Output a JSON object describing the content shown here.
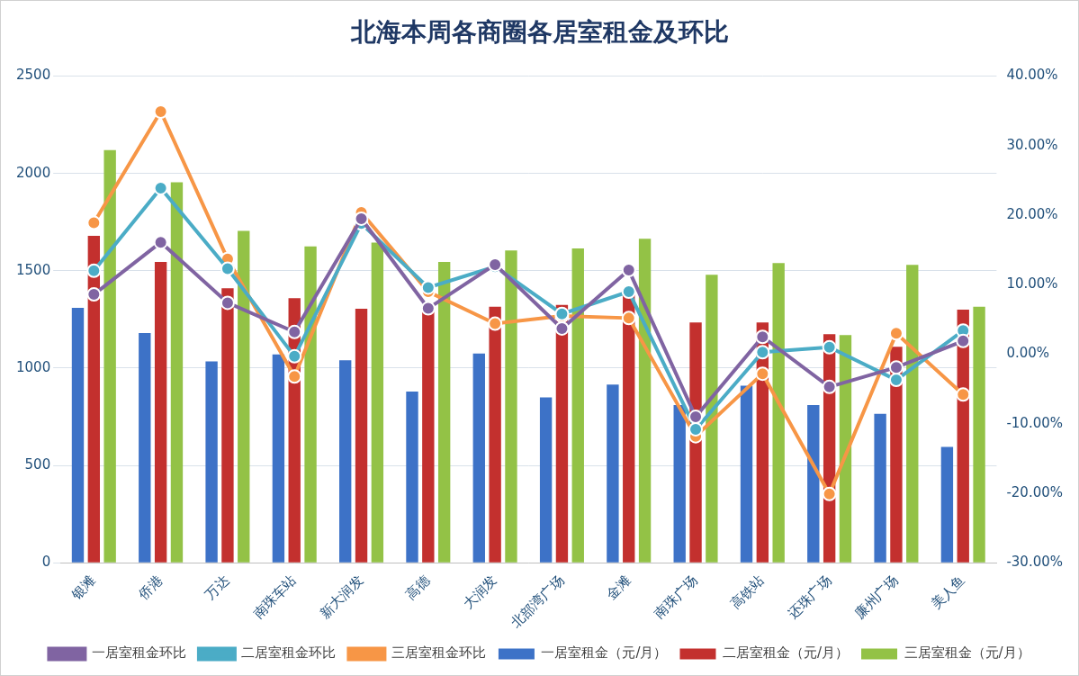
{
  "chart_data": {
    "type": "bar",
    "title": "北海本周各商圈各居室租金及环比",
    "categories": [
      "银滩",
      "侨港",
      "万达",
      "南珠车站",
      "新大润发",
      "高德",
      "大润发",
      "北部湾广场",
      "金滩",
      "南珠广场",
      "高铁站",
      "还珠广场",
      "廉州广场",
      "美人鱼"
    ],
    "series": [
      {
        "name": "一居室租金（元/月）",
        "type": "bar",
        "color": "#3d72c7",
        "values": [
          1310,
          1180,
          1035,
          1070,
          1040,
          880,
          1075,
          850,
          915,
          810,
          910,
          810,
          765,
          595
        ]
      },
      {
        "name": "二居室租金（元/月）",
        "type": "bar",
        "color": "#c3302e",
        "values": [
          1680,
          1545,
          1410,
          1360,
          1305,
          1320,
          1315,
          1325,
          1380,
          1235,
          1235,
          1175,
          1110,
          1300
        ]
      },
      {
        "name": "三居室租金（元/月）",
        "type": "bar",
        "color": "#93c246",
        "values": [
          2120,
          1955,
          1705,
          1625,
          1645,
          1545,
          1605,
          1615,
          1665,
          1480,
          1540,
          1170,
          1530,
          1315
        ]
      },
      {
        "name": "一居室租金环比",
        "type": "line",
        "axis": "y2",
        "color": "#8064a2",
        "marker": "circle",
        "line_style": "solid",
        "values": [
          8.6,
          16.1,
          7.4,
          3.2,
          19.5,
          6.6,
          12.9,
          3.7,
          12.1,
          -9.0,
          2.5,
          -4.7,
          -1.9,
          1.9
        ]
      },
      {
        "name": "二居室租金环比",
        "type": "line",
        "axis": "y2",
        "color": "#4bacc6",
        "marker": "circle",
        "line_style": "solid",
        "values": [
          12.0,
          23.9,
          12.3,
          -0.3,
          18.8,
          9.6,
          12.6,
          5.8,
          9.0,
          -10.8,
          0.3,
          1.0,
          -3.7,
          3.4
        ]
      },
      {
        "name": "三居室租金环比",
        "type": "line",
        "axis": "y2",
        "color": "#f79646",
        "marker": "circle",
        "line_style": "solid",
        "values": [
          18.9,
          34.9,
          13.7,
          -3.2,
          20.4,
          9.0,
          4.4,
          5.5,
          5.2,
          -11.8,
          -2.8,
          -20.1,
          3.0,
          -5.8
        ]
      }
    ],
    "ylim": [
      0,
      2500
    ],
    "yticks": [
      0,
      500,
      1000,
      1500,
      2000,
      2500
    ],
    "y2lim": [
      -30,
      40
    ],
    "y2ticks": [
      {
        "value": -30,
        "label": "-30.00%"
      },
      {
        "value": -20,
        "label": "-20.00%"
      },
      {
        "value": -10,
        "label": "-10.00%"
      },
      {
        "value": 0,
        "label": "0.00%"
      },
      {
        "value": 10,
        "label": "10.00%"
      },
      {
        "value": 20,
        "label": "20.00%"
      },
      {
        "value": 30,
        "label": "30.00%"
      },
      {
        "value": 40,
        "label": "40.00%"
      }
    ],
    "grid": true,
    "legend": "bottom"
  }
}
